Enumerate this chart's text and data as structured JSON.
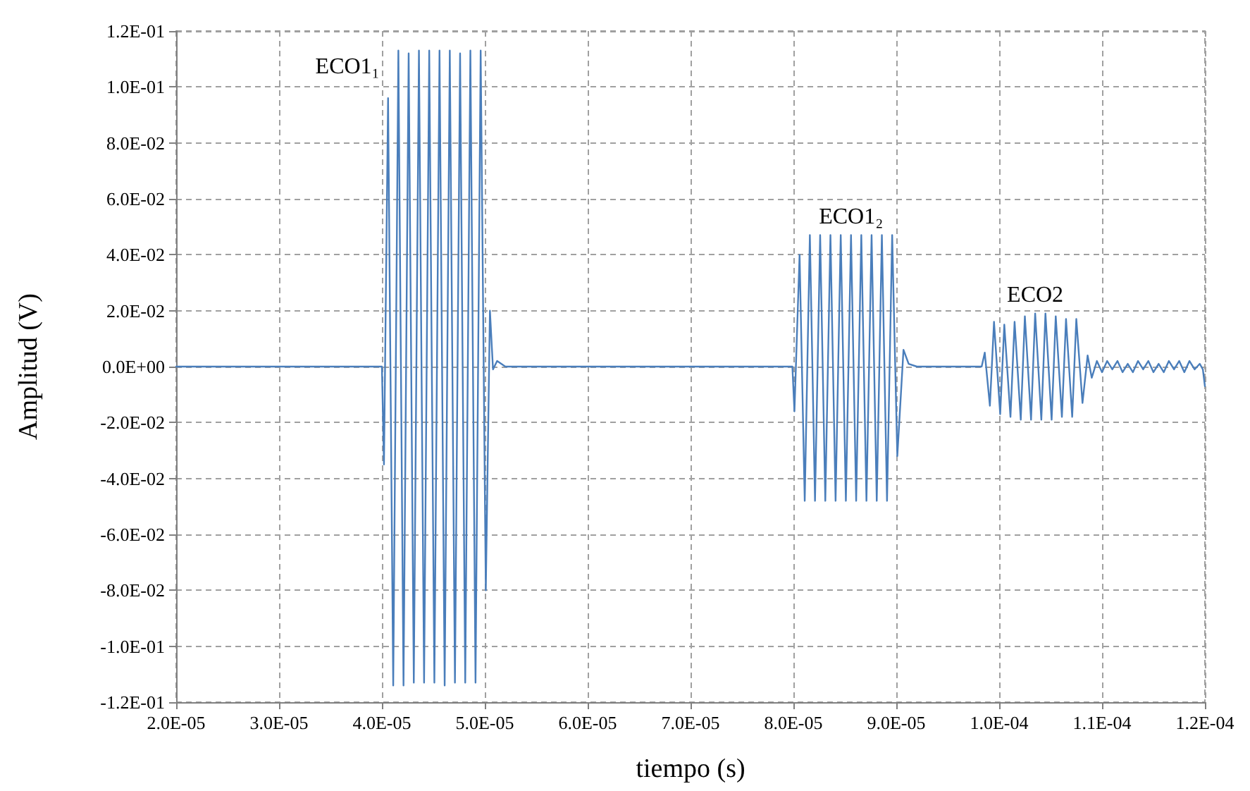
{
  "chart_data": {
    "type": "line",
    "xlabel": "tiempo (s)",
    "ylabel": "Amplitud (V)",
    "color": "#4a7ebb",
    "marker": "none",
    "line_style": "solid",
    "grid": true,
    "xlim": [
      2e-05,
      0.00012
    ],
    "xticks": [
      {
        "value": 2e-05,
        "label": "2.0E-05"
      },
      {
        "value": 3e-05,
        "label": "3.0E-05"
      },
      {
        "value": 4e-05,
        "label": "4.0E-05"
      },
      {
        "value": 5e-05,
        "label": "5.0E-05"
      },
      {
        "value": 6e-05,
        "label": "6.0E-05"
      },
      {
        "value": 7e-05,
        "label": "7.0E-05"
      },
      {
        "value": 8e-05,
        "label": "8.0E-05"
      },
      {
        "value": 9e-05,
        "label": "9.0E-05"
      },
      {
        "value": 0.0001,
        "label": "1.0E-04"
      },
      {
        "value": 0.00011,
        "label": "1.1E-04"
      },
      {
        "value": 0.00012,
        "label": "1.2E-04"
      }
    ],
    "ylim": [
      -0.12,
      0.12
    ],
    "yticks": [
      {
        "value": -0.12,
        "label": "-1.2E-01"
      },
      {
        "value": -0.1,
        "label": "-1.0E-01"
      },
      {
        "value": -0.08,
        "label": "-8.0E-02"
      },
      {
        "value": -0.06,
        "label": "-6.0E-02"
      },
      {
        "value": -0.04,
        "label": "-4.0E-02"
      },
      {
        "value": -0.02,
        "label": "-2.0E-02"
      },
      {
        "value": 0,
        "label": "0.0E+00"
      },
      {
        "value": 0.02,
        "label": "2.0E-02"
      },
      {
        "value": 0.04,
        "label": "4.0E-02"
      },
      {
        "value": 0.06,
        "label": "6.0E-02"
      },
      {
        "value": 0.08,
        "label": "8.0E-02"
      },
      {
        "value": 0.1,
        "label": "1.0E-01"
      },
      {
        "value": 0.12,
        "label": "1.2E-01"
      }
    ],
    "annotations": [
      {
        "text": "ECO1₁",
        "x": 4.06e-05,
        "y": 0.096
      },
      {
        "text": "ECO1₂",
        "x": 8.56e-05,
        "y": 0.047
      },
      {
        "text": "ECO2",
        "x": 0.0001035,
        "y": 0.019
      }
    ],
    "x": [
      2e-05,
      4e-05,
      4.02e-05,
      4.06e-05,
      4.11e-05,
      4.16e-05,
      4.21e-05,
      4.26e-05,
      4.31e-05,
      4.36e-05,
      4.41e-05,
      4.46e-05,
      4.51e-05,
      4.56e-05,
      4.61e-05,
      4.66e-05,
      4.71e-05,
      4.76e-05,
      4.81e-05,
      4.86e-05,
      4.91e-05,
      4.96e-05,
      5.01e-05,
      5.05e-05,
      5.08e-05,
      5.12e-05,
      5.2e-05,
      7.99e-05,
      8.01e-05,
      8.06e-05,
      8.11e-05,
      8.16e-05,
      8.21e-05,
      8.26e-05,
      8.31e-05,
      8.36e-05,
      8.41e-05,
      8.46e-05,
      8.51e-05,
      8.56e-05,
      8.61e-05,
      8.66e-05,
      8.71e-05,
      8.76e-05,
      8.81e-05,
      8.86e-05,
      8.91e-05,
      8.96e-05,
      9.01e-05,
      9.07e-05,
      9.12e-05,
      9.2e-05,
      9.83e-05,
      9.86e-05,
      9.91e-05,
      9.95e-05,
      0.0001001,
      0.0001005,
      0.0001011,
      0.0001015,
      0.0001021,
      0.0001025,
      0.0001031,
      0.0001035,
      0.0001041,
      0.0001045,
      0.0001051,
      0.0001055,
      0.0001061,
      0.0001065,
      0.0001071,
      0.0001075,
      0.0001081,
      0.0001086,
      0.000109,
      0.0001095,
      0.00011,
      0.0001105,
      0.000111,
      0.0001115,
      0.000112,
      0.0001125,
      0.000113,
      0.0001135,
      0.000114,
      0.0001145,
      0.000115,
      0.0001155,
      0.000116,
      0.0001165,
      0.000117,
      0.0001175,
      0.000118,
      0.0001185,
      0.000119,
      0.0001195,
      0.0001198,
      0.00012
    ],
    "values": [
      0,
      0,
      -0.035,
      0.096,
      -0.114,
      0.113,
      -0.114,
      0.112,
      -0.113,
      0.113,
      -0.113,
      0.113,
      -0.113,
      0.113,
      -0.114,
      0.113,
      -0.113,
      0.112,
      -0.113,
      0.113,
      -0.113,
      0.113,
      -0.08,
      0.02,
      -0.001,
      0.002,
      0,
      0,
      -0.016,
      0.04,
      -0.048,
      0.047,
      -0.048,
      0.047,
      -0.048,
      0.047,
      -0.048,
      0.047,
      -0.048,
      0.047,
      -0.048,
      0.047,
      -0.048,
      0.047,
      -0.048,
      0.047,
      -0.048,
      0.047,
      -0.032,
      0.006,
      0.001,
      0,
      0,
      0.005,
      -0.014,
      0.016,
      -0.017,
      0.015,
      -0.018,
      0.016,
      -0.019,
      0.018,
      -0.019,
      0.019,
      -0.019,
      0.019,
      -0.019,
      0.018,
      -0.018,
      0.017,
      -0.018,
      0.017,
      -0.013,
      0.004,
      -0.004,
      0.002,
      -0.002,
      0.002,
      -0.001,
      0.002,
      -0.002,
      0.001,
      -0.002,
      0.002,
      -0.001,
      0.002,
      -0.002,
      0.001,
      -0.002,
      0.002,
      -0.001,
      0.002,
      -0.002,
      0.002,
      -0.001,
      0.001,
      -0.001,
      -0.007
    ]
  }
}
